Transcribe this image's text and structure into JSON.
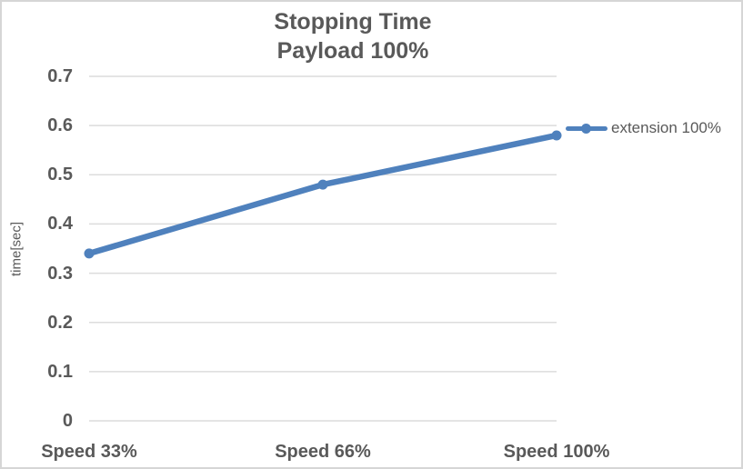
{
  "chart": {
    "title_line1": "Stopping Time",
    "title_line2": "Payload 100%",
    "text_color": "#595959",
    "grid_color": "#dcdcdc",
    "border_color": "#d6d6d6",
    "background": "#ffffff"
  },
  "legend": {
    "label": "extension 100%",
    "marker": "circle-on-line"
  },
  "chart_data": {
    "type": "line",
    "title": "Stopping Time Payload 100%",
    "categories": [
      "Speed 33%",
      "Speed 66%",
      "Speed 100%"
    ],
    "series": [
      {
        "name": "extension 100%",
        "values": [
          0.34,
          0.48,
          0.58
        ],
        "color": "#4F81BD",
        "marker": "circle"
      }
    ],
    "xlabel": "",
    "ylabel": "time[sec]",
    "ylim": [
      0,
      0.7
    ],
    "ytick_step": 0.1,
    "ytick_labels": [
      "0",
      "0.1",
      "0.2",
      "0.3",
      "0.4",
      "0.5",
      "0.6",
      "0.7"
    ],
    "grid": "horizontal",
    "legend_position": "right"
  }
}
